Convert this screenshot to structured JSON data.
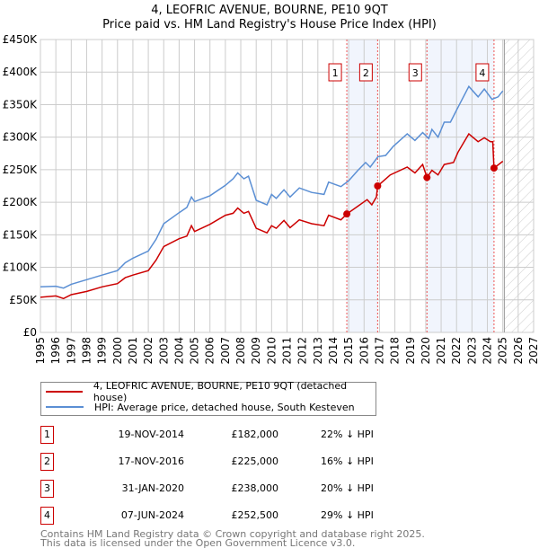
{
  "title": "4, LEOFRIC AVENUE, BOURNE, PE10 9QT",
  "subtitle": "Price paid vs. HM Land Registry's House Price Index (HPI)",
  "chart_data": {
    "type": "line",
    "xlim": [
      1995,
      2027
    ],
    "ylim": [
      0,
      450000
    ],
    "x_ticks": [
      "1995",
      "1996",
      "1997",
      "1998",
      "1999",
      "2000",
      "2001",
      "2002",
      "2003",
      "2004",
      "2005",
      "2006",
      "2007",
      "2008",
      "2009",
      "2010",
      "2011",
      "2012",
      "2013",
      "2014",
      "2015",
      "2016",
      "2017",
      "2018",
      "2019",
      "2020",
      "2021",
      "2022",
      "2023",
      "2024",
      "2025",
      "2026",
      "2027"
    ],
    "y_ticks": [
      {
        "v": 0,
        "label": "£0"
      },
      {
        "v": 50000,
        "label": "£50K"
      },
      {
        "v": 100000,
        "label": "£100K"
      },
      {
        "v": 150000,
        "label": "£150K"
      },
      {
        "v": 200000,
        "label": "£200K"
      },
      {
        "v": 250000,
        "label": "£250K"
      },
      {
        "v": 300000,
        "label": "£300K"
      },
      {
        "v": 350000,
        "label": "£350K"
      },
      {
        "v": 400000,
        "label": "£400K"
      },
      {
        "v": 450000,
        "label": "£450K"
      }
    ],
    "grid": true,
    "forecast_hatch_from": 2025.1,
    "series": [
      {
        "name": "4, LEOFRIC AVENUE, BOURNE, PE10 9QT (detached house)",
        "color": "#cc0000",
        "x": [
          1995,
          1996,
          1996.5,
          1997,
          1998,
          1999,
          2000,
          2000.5,
          2001,
          2002,
          2002.5,
          2003,
          2004,
          2004.5,
          2004.8,
          2005,
          2006,
          2007,
          2007.5,
          2007.8,
          2008.2,
          2008.5,
          2009,
          2009.7,
          2010,
          2010.3,
          2010.8,
          2011.2,
          2011.8,
          2012.6,
          2013.4,
          2013.7,
          2014.5,
          2014.88,
          2015.6,
          2016.2,
          2016.5,
          2016.8,
          2016.88,
          2017.7,
          2018.8,
          2019.3,
          2019.8,
          2020.08,
          2020.4,
          2020.8,
          2021.2,
          2021.8,
          2022.1,
          2022.8,
          2023.4,
          2023.8,
          2024.2,
          2024.35,
          2024.43,
          2025.0
        ],
        "y": [
          54000,
          56000,
          52000,
          58000,
          63000,
          70000,
          75000,
          84000,
          88000,
          95000,
          111000,
          132000,
          144000,
          148000,
          164000,
          155000,
          166000,
          180000,
          183000,
          191000,
          183000,
          186000,
          160000,
          153000,
          164000,
          160000,
          172000,
          161000,
          173000,
          167000,
          164000,
          180000,
          173000,
          182000,
          194000,
          204000,
          196000,
          208000,
          225000,
          242000,
          254000,
          245000,
          258000,
          238000,
          249000,
          242000,
          258000,
          261000,
          277000,
          305000,
          293000,
          299000,
          293000,
          293000,
          252500,
          263000
        ]
      },
      {
        "name": "HPI: Average price, detached house, South Kesteven",
        "color": "#5b8fd4",
        "x": [
          1995,
          1996,
          1996.5,
          1997,
          1998,
          1999,
          2000,
          2000.5,
          2001,
          2002,
          2002.5,
          2003,
          2004,
          2004.5,
          2004.8,
          2005,
          2006,
          2007,
          2007.5,
          2007.8,
          2008.2,
          2008.5,
          2009,
          2009.7,
          2010,
          2010.3,
          2010.8,
          2011.2,
          2011.8,
          2012.6,
          2013.4,
          2013.7,
          2014.5,
          2015,
          2015.6,
          2016.1,
          2016.4,
          2016.9,
          2017.4,
          2017.9,
          2018.8,
          2019.3,
          2019.8,
          2020.2,
          2020.4,
          2020.8,
          2021.2,
          2021.6,
          2022.1,
          2022.8,
          2023.4,
          2023.8,
          2024.3,
          2024.7,
          2025.0
        ],
        "y": [
          70000,
          71000,
          68000,
          74000,
          81000,
          88000,
          95000,
          107000,
          114000,
          125000,
          143000,
          167000,
          184000,
          192000,
          208000,
          201000,
          210000,
          226000,
          236000,
          245000,
          236000,
          240000,
          203000,
          196000,
          212000,
          206000,
          219000,
          208000,
          222000,
          215000,
          212000,
          231000,
          224000,
          233000,
          249000,
          261000,
          254000,
          270000,
          272000,
          286000,
          305000,
          295000,
          307000,
          298000,
          312000,
          300000,
          323000,
          323000,
          346000,
          378000,
          362000,
          374000,
          358000,
          362000,
          371000
        ]
      }
    ],
    "sales": [
      {
        "n": "1",
        "date": "19-NOV-2014",
        "x": 2014.88,
        "price_label": "£182,000",
        "price": 182000,
        "hpi_diff": "22% ↓ HPI"
      },
      {
        "n": "2",
        "date": "17-NOV-2016",
        "x": 2016.88,
        "price_label": "£225,000",
        "price": 225000,
        "hpi_diff": "16% ↓ HPI"
      },
      {
        "n": "3",
        "date": "31-JAN-2020",
        "x": 2020.08,
        "price_label": "£238,000",
        "price": 238000,
        "hpi_diff": "20% ↓ HPI"
      },
      {
        "n": "4",
        "date": "07-JUN-2024",
        "x": 2024.43,
        "price_label": "£252,500",
        "price": 252500,
        "hpi_diff": "29% ↓ HPI"
      }
    ]
  },
  "footer": {
    "line1": "Contains HM Land Registry data © Crown copyright and database right 2025.",
    "line2": "This data is licensed under the Open Government Licence v3.0."
  }
}
